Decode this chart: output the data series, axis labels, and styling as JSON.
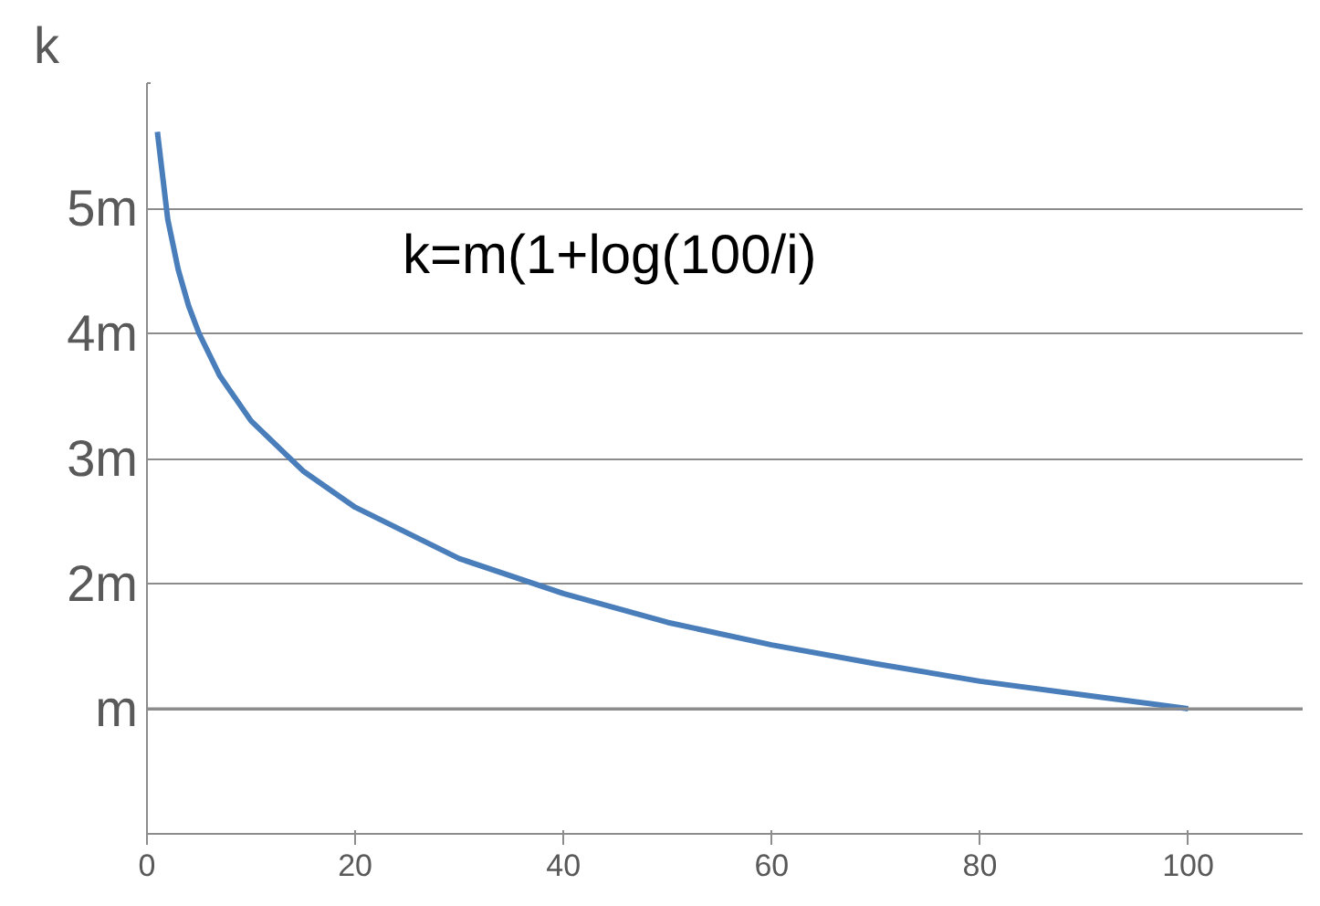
{
  "chart_data": {
    "type": "line",
    "ylabel": "k",
    "annotations": [
      "k=m(1+log(100/i)"
    ],
    "x": [
      1,
      2,
      3,
      4,
      5,
      7,
      10,
      15,
      20,
      30,
      40,
      50,
      60,
      70,
      80,
      90,
      100
    ],
    "series": [
      {
        "color": "#4a7ebb",
        "values": [
          5.61,
          4.91,
          4.51,
          4.22,
          4.0,
          3.66,
          3.3,
          2.9,
          2.61,
          2.2,
          1.92,
          1.69,
          1.51,
          1.36,
          1.22,
          1.11,
          1.0
        ]
      }
    ],
    "xlim": [
      0,
      111
    ],
    "xticks": [
      0,
      20,
      40,
      60,
      80,
      100
    ],
    "ylim": [
      0,
      6
    ],
    "yticks": [
      {
        "value": 0,
        "label": null
      },
      {
        "value": 1,
        "label": "m"
      },
      {
        "value": 2,
        "label": "2m"
      },
      {
        "value": 3,
        "label": "3m"
      },
      {
        "value": 4,
        "label": "4m"
      },
      {
        "value": 5,
        "label": "5m"
      },
      {
        "value": 6,
        "label": null
      }
    ],
    "grid": "y",
    "marker": "none",
    "line_style": "solid",
    "ref_lines": [
      {
        "axis": "y",
        "value": 1,
        "label": null,
        "color": "#8c8c8c"
      }
    ]
  }
}
